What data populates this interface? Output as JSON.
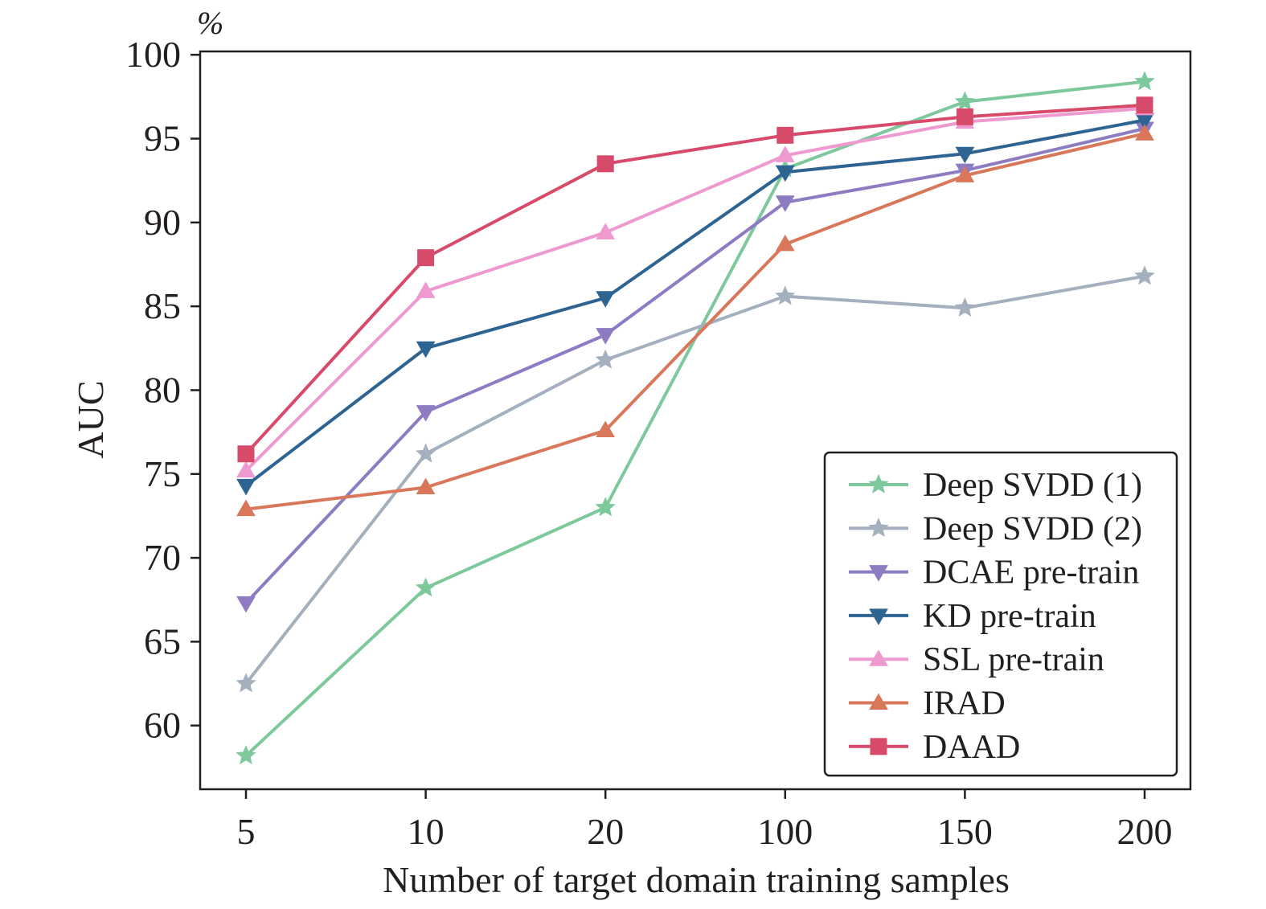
{
  "chart_data": {
    "type": "line",
    "title": "",
    "xlabel": "Number of target domain training samples",
    "ylabel": "AUC",
    "y_unit": "%",
    "x": [
      "5",
      "10",
      "20",
      "100",
      "150",
      "200"
    ],
    "ylim": [
      56.2,
      100.2
    ],
    "yticks": [
      60,
      65,
      70,
      75,
      80,
      85,
      90,
      95,
      100
    ],
    "grid": false,
    "legend_position": "lower-right",
    "series": [
      {
        "name": "Deep SVDD (1)",
        "marker": "star",
        "color": "#7ec99b",
        "values": [
          58.2,
          68.2,
          73.0,
          93.2,
          97.2,
          98.4
        ]
      },
      {
        "name": "Deep SVDD (2)",
        "marker": "star",
        "color": "#a4b0bd",
        "values": [
          62.5,
          76.2,
          81.8,
          85.6,
          84.9,
          86.8
        ]
      },
      {
        "name": "DCAE pre-train",
        "marker": "triangle-down",
        "color": "#8e7cc3",
        "values": [
          67.3,
          78.7,
          83.3,
          91.2,
          93.1,
          95.6
        ]
      },
      {
        "name": "KD pre-train",
        "marker": "triangle-down",
        "color": "#2e6492",
        "values": [
          74.3,
          82.5,
          85.5,
          93.0,
          94.1,
          96.1
        ]
      },
      {
        "name": "SSL pre-train",
        "marker": "triangle-up",
        "color": "#ee9ad0",
        "values": [
          75.2,
          85.9,
          89.4,
          94.0,
          96.0,
          96.8
        ]
      },
      {
        "name": "IRAD",
        "marker": "triangle-up",
        "color": "#d9775b",
        "values": [
          72.9,
          74.2,
          77.6,
          88.7,
          92.8,
          95.3
        ]
      },
      {
        "name": "DAAD",
        "marker": "square",
        "color": "#d84a6a",
        "values": [
          76.2,
          87.9,
          93.5,
          95.2,
          96.3,
          97.0
        ]
      }
    ]
  }
}
